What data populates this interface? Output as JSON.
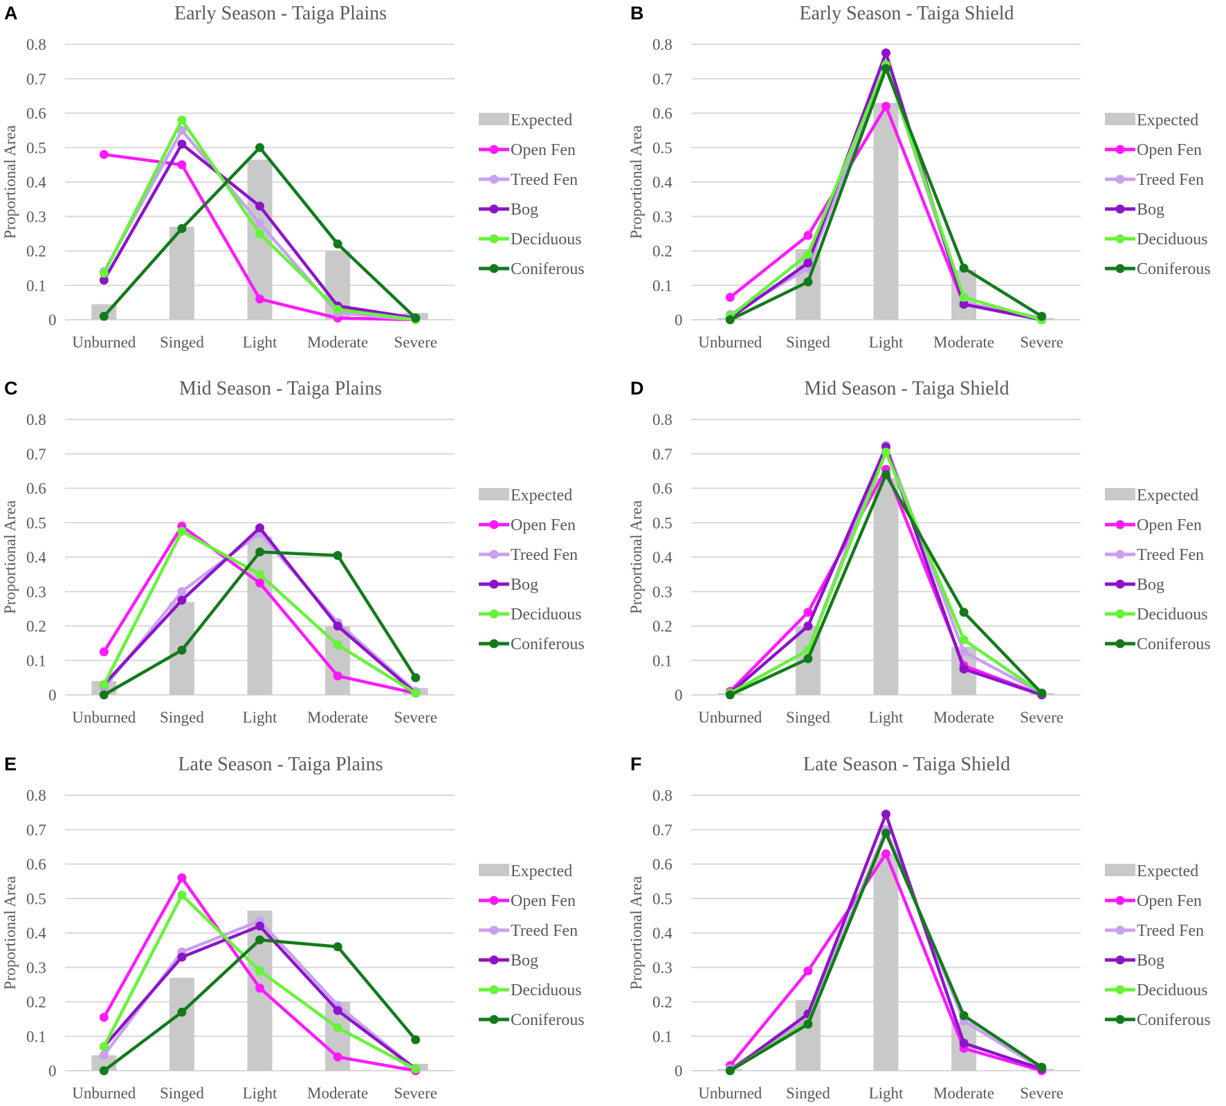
{
  "colors": {
    "Expected": "#c9c9c9",
    "Open Fen": "#ff1aff",
    "Treed Fen": "#c9a0f0",
    "Bog": "#8c14c8",
    "Deciduous": "#66f33a",
    "Coniferous": "#137a1c",
    "grid": "#d9d9d9",
    "text": "#595959"
  },
  "chart_data": [
    {
      "panel": "A",
      "type": "line",
      "title": "Early Season - Taiga Plains",
      "ylabel": "Proportional Area",
      "ylim": [
        0,
        0.8
      ],
      "yticks": [
        "0",
        "0.1",
        "0.2",
        "0.3",
        "0.4",
        "0.5",
        "0.6",
        "0.7",
        "0.8"
      ],
      "categories": [
        "Unburned",
        "Singed",
        "Light",
        "Moderate",
        "Severe"
      ],
      "bars": {
        "name": "Expected",
        "values": [
          0.045,
          0.27,
          0.465,
          0.2,
          0.02
        ]
      },
      "series": [
        {
          "name": "Open Fen",
          "values": [
            0.48,
            0.45,
            0.06,
            0.005,
            0.0
          ]
        },
        {
          "name": "Treed Fen",
          "values": [
            0.14,
            0.55,
            0.28,
            0.02,
            0.0
          ]
        },
        {
          "name": "Bog",
          "values": [
            0.115,
            0.51,
            0.33,
            0.04,
            0.005
          ]
        },
        {
          "name": "Deciduous",
          "values": [
            0.135,
            0.58,
            0.25,
            0.03,
            0.0
          ]
        },
        {
          "name": "Coniferous",
          "values": [
            0.01,
            0.265,
            0.5,
            0.22,
            0.005
          ]
        }
      ],
      "legend": "right"
    },
    {
      "panel": "B",
      "type": "line",
      "title": "Early Season - Taiga Shield",
      "ylabel": "Proportional Area",
      "ylim": [
        0,
        0.8
      ],
      "yticks": [
        "0",
        "0.1",
        "0.2",
        "0.3",
        "0.4",
        "0.5",
        "0.6",
        "0.7",
        "0.8"
      ],
      "categories": [
        "Unburned",
        "Singed",
        "Light",
        "Moderate",
        "Severe"
      ],
      "bars": {
        "name": "Expected",
        "values": [
          0.005,
          0.205,
          0.63,
          0.145,
          0.005
        ]
      },
      "series": [
        {
          "name": "Open Fen",
          "values": [
            0.065,
            0.245,
            0.62,
            0.045,
            0.0
          ]
        },
        {
          "name": "Treed Fen",
          "values": [
            0.015,
            0.15,
            0.74,
            0.05,
            0.005
          ]
        },
        {
          "name": "Bog",
          "values": [
            0.005,
            0.165,
            0.775,
            0.045,
            0.0
          ]
        },
        {
          "name": "Deciduous",
          "values": [
            0.01,
            0.19,
            0.74,
            0.065,
            0.0
          ]
        },
        {
          "name": "Coniferous",
          "values": [
            0.0,
            0.11,
            0.73,
            0.15,
            0.01
          ]
        }
      ],
      "legend": "right"
    },
    {
      "panel": "C",
      "type": "line",
      "title": "Mid Season - Taiga Plains",
      "ylabel": "Proportional Area",
      "ylim": [
        0,
        0.8
      ],
      "yticks": [
        "0",
        "0.1",
        "0.2",
        "0.3",
        "0.4",
        "0.5",
        "0.6",
        "0.7",
        "0.8"
      ],
      "categories": [
        "Unburned",
        "Singed",
        "Light",
        "Moderate",
        "Severe"
      ],
      "bars": {
        "name": "Expected",
        "values": [
          0.04,
          0.27,
          0.46,
          0.2,
          0.02
        ]
      },
      "series": [
        {
          "name": "Open Fen",
          "values": [
            0.125,
            0.49,
            0.325,
            0.055,
            0.005
          ]
        },
        {
          "name": "Treed Fen",
          "values": [
            0.02,
            0.3,
            0.47,
            0.21,
            0.01
          ]
        },
        {
          "name": "Bog",
          "values": [
            0.03,
            0.275,
            0.485,
            0.2,
            0.005
          ]
        },
        {
          "name": "Deciduous",
          "values": [
            0.03,
            0.475,
            0.35,
            0.145,
            0.005
          ]
        },
        {
          "name": "Coniferous",
          "values": [
            0.0,
            0.13,
            0.415,
            0.405,
            0.05
          ]
        }
      ],
      "legend": "right"
    },
    {
      "panel": "D",
      "type": "line",
      "title": "Mid Season - Taiga Shield",
      "ylabel": "Proportional Area",
      "ylim": [
        0,
        0.8
      ],
      "yticks": [
        "0",
        "0.1",
        "0.2",
        "0.3",
        "0.4",
        "0.5",
        "0.6",
        "0.7",
        "0.8"
      ],
      "categories": [
        "Unburned",
        "Singed",
        "Light",
        "Moderate",
        "Severe"
      ],
      "bars": {
        "name": "Expected",
        "values": [
          0.005,
          0.2,
          0.63,
          0.14,
          0.005
        ]
      },
      "series": [
        {
          "name": "Open Fen",
          "values": [
            0.01,
            0.24,
            0.655,
            0.085,
            0.0
          ]
        },
        {
          "name": "Treed Fen",
          "values": [
            0.005,
            0.13,
            0.725,
            0.125,
            0.005
          ]
        },
        {
          "name": "Bog",
          "values": [
            0.005,
            0.2,
            0.72,
            0.075,
            0.0
          ]
        },
        {
          "name": "Deciduous",
          "values": [
            0.005,
            0.13,
            0.705,
            0.16,
            0.005
          ]
        },
        {
          "name": "Coniferous",
          "values": [
            0.0,
            0.105,
            0.64,
            0.24,
            0.005
          ]
        }
      ],
      "legend": "right"
    },
    {
      "panel": "E",
      "type": "line",
      "title": "Late Season - Taiga Plains",
      "ylabel": "Proportional Area",
      "ylim": [
        0,
        0.8
      ],
      "yticks": [
        "0",
        "0.1",
        "0.2",
        "0.3",
        "0.4",
        "0.5",
        "0.6",
        "0.7",
        "0.8"
      ],
      "categories": [
        "Unburned",
        "Singed",
        "Light",
        "Moderate",
        "Severe"
      ],
      "bars": {
        "name": "Expected",
        "values": [
          0.045,
          0.27,
          0.465,
          0.2,
          0.02
        ]
      },
      "series": [
        {
          "name": "Open Fen",
          "values": [
            0.155,
            0.56,
            0.24,
            0.04,
            0.0
          ]
        },
        {
          "name": "Treed Fen",
          "values": [
            0.045,
            0.345,
            0.435,
            0.19,
            0.005
          ]
        },
        {
          "name": "Bog",
          "values": [
            0.07,
            0.33,
            0.42,
            0.175,
            0.005
          ]
        },
        {
          "name": "Deciduous",
          "values": [
            0.07,
            0.51,
            0.29,
            0.125,
            0.005
          ]
        },
        {
          "name": "Coniferous",
          "values": [
            0.0,
            0.17,
            0.38,
            0.36,
            0.09
          ]
        }
      ],
      "legend": "right"
    },
    {
      "panel": "F",
      "type": "line",
      "title": "Late Season - Taiga Shield",
      "ylabel": "Proportional Area",
      "ylim": [
        0,
        0.8
      ],
      "yticks": [
        "0",
        "0.1",
        "0.2",
        "0.3",
        "0.4",
        "0.5",
        "0.6",
        "0.7",
        "0.8"
      ],
      "categories": [
        "Unburned",
        "Singed",
        "Light",
        "Moderate",
        "Severe"
      ],
      "bars": {
        "name": "Expected",
        "values": [
          0.005,
          0.205,
          0.63,
          0.14,
          0.005
        ]
      },
      "series": [
        {
          "name": "Open Fen",
          "values": [
            0.015,
            0.29,
            0.63,
            0.065,
            0.0
          ]
        },
        {
          "name": "Treed Fen",
          "values": [
            0.005,
            0.15,
            0.7,
            0.145,
            0.005
          ]
        },
        {
          "name": "Bog",
          "values": [
            0.0,
            0.165,
            0.745,
            0.08,
            0.005
          ]
        },
        {
          "name": "Deciduous",
          "values": [
            0.0,
            0.14,
            0.69,
            0.16,
            0.01
          ]
        },
        {
          "name": "Coniferous",
          "values": [
            0.0,
            0.135,
            0.69,
            0.16,
            0.01
          ]
        }
      ],
      "legend": "right"
    }
  ]
}
